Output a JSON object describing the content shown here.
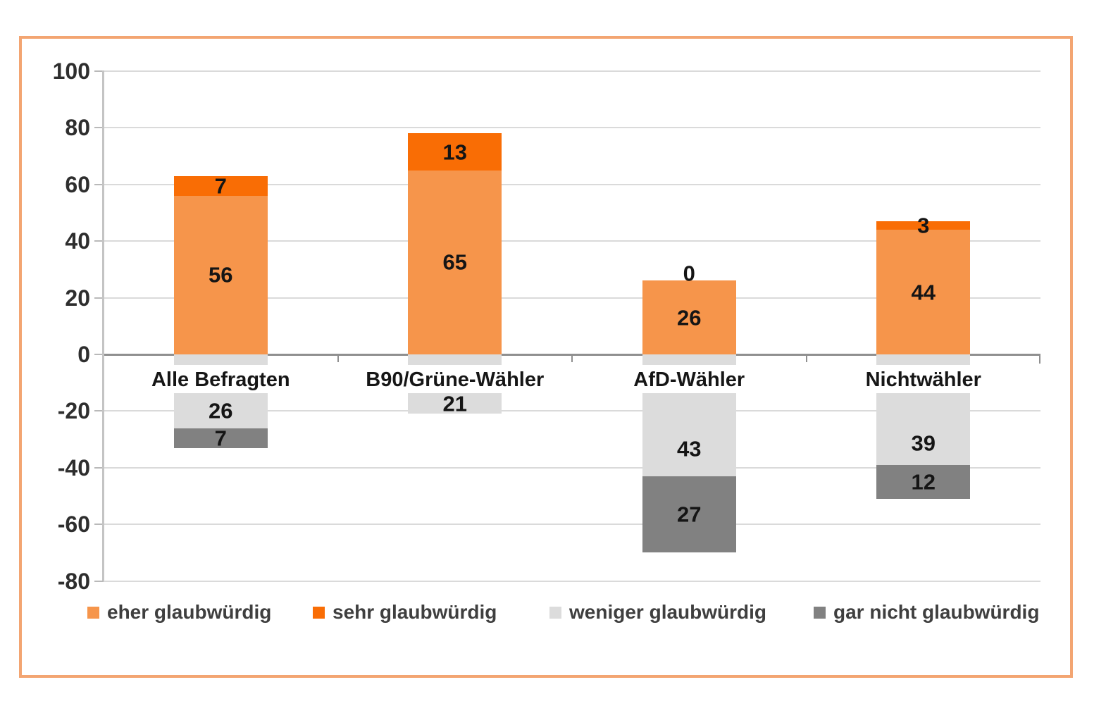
{
  "chart_data": {
    "type": "bar",
    "stacked": true,
    "diverging": true,
    "title": "",
    "categories": [
      "Alle Befragten",
      "B90/Grüne-Wähler",
      "AfD-Wähler",
      "Nichtwähler"
    ],
    "series": [
      {
        "key": "eher-glaubwuerdig",
        "name": "eher glaubwürdig",
        "color": "#F6954B",
        "direction": "positive",
        "values": [
          56,
          65,
          26,
          44
        ]
      },
      {
        "key": "sehr-glaubwuerdig",
        "name": "sehr glaubwürdig",
        "color": "#F96D05",
        "direction": "positive",
        "values": [
          7,
          13,
          0,
          3
        ]
      },
      {
        "key": "weniger-glaubwuerdig",
        "name": "weniger glaubwürdig",
        "color": "#DCDCDC",
        "direction": "negative",
        "values": [
          26,
          21,
          43,
          39
        ]
      },
      {
        "key": "gar-nicht-glaubwuerdig",
        "name": "gar nicht glaubwürdig",
        "color": "#818181",
        "direction": "negative",
        "values": [
          7,
          0,
          27,
          12
        ]
      }
    ],
    "y_axis": {
      "ticks": [
        100,
        80,
        60,
        40,
        20,
        0,
        -20,
        -40,
        -60,
        -80
      ],
      "min": -80,
      "max": 100
    },
    "xlabel": "",
    "ylabel": "",
    "grid": true,
    "legend_position": "bottom"
  },
  "colors": {
    "frame_border": "#F3A572",
    "gridline": "#DADADA",
    "zero_line": "#8F8F8F",
    "y_axis_line": "#C4C4C4",
    "tick_text": "#2E2E2E",
    "value_text": "#151515",
    "legend_text": "#3F3F3F",
    "background": "#FFFFFF"
  }
}
